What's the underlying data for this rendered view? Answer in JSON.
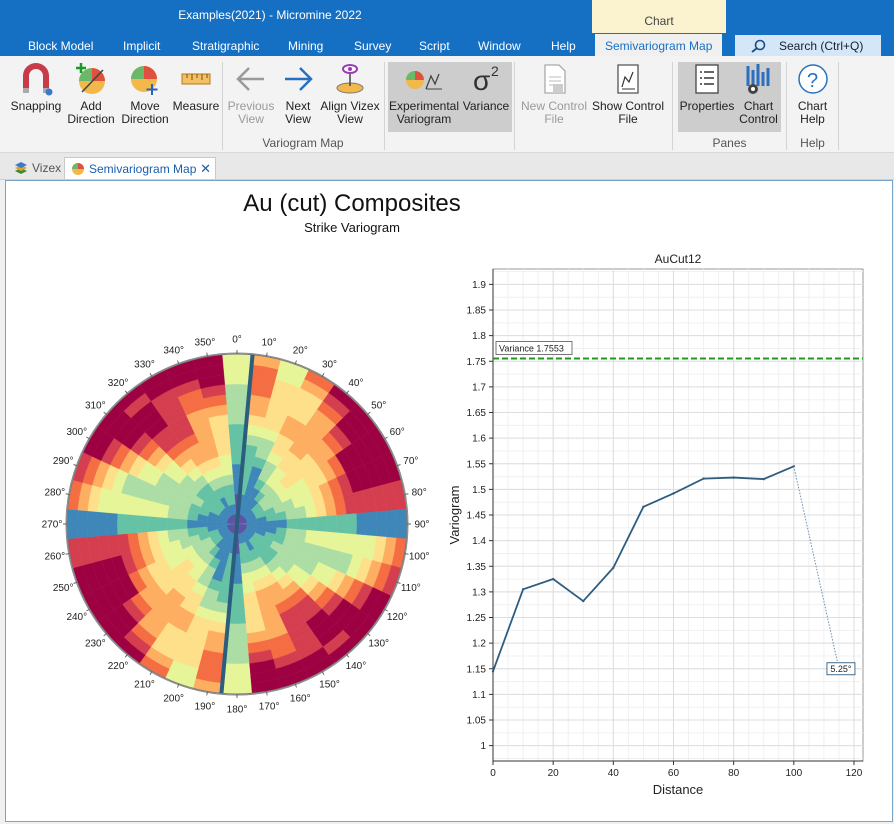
{
  "window": {
    "title": "Examples(2021)  -  Micromine 2022",
    "context_group": "Chart"
  },
  "menu_tabs": [
    "Block Model",
    "Implicit",
    "Stratigraphic",
    "Mining",
    "Survey",
    "Script",
    "Window",
    "Help",
    "Semivariogram Map"
  ],
  "search": {
    "label": "Search (Ctrl+Q)"
  },
  "ribbon": {
    "snapping": "Snapping",
    "add_direction": [
      "Add",
      "Direction"
    ],
    "move_direction": [
      "Move",
      "Direction"
    ],
    "measure": "Measure",
    "previous_view": [
      "Previous",
      "View"
    ],
    "next_view": [
      "Next",
      "View"
    ],
    "align_vizex_view": [
      "Align Vizex",
      "View"
    ],
    "group_variogram_map": "Variogram Map",
    "experimental_variogram": [
      "Experimental",
      "Variogram"
    ],
    "variance": "Variance",
    "new_control_file": [
      "New Control",
      "File"
    ],
    "show_control_file": [
      "Show Control",
      "File"
    ],
    "properties": "Properties",
    "chart_control": [
      "Chart",
      "Control"
    ],
    "group_panes": "Panes",
    "chart_help": [
      "Chart",
      "Help"
    ],
    "group_help": "Help"
  },
  "doc_tabs": {
    "vizex": "Vizex",
    "semivariogram": "Semivariogram Map"
  },
  "map": {
    "title": "Au (cut) Composites",
    "subtitle": "Strike Variogram",
    "angle_labels": [
      "0°",
      "10°",
      "20°",
      "30°",
      "40°",
      "50°",
      "60°",
      "70°",
      "80°",
      "90°",
      "100°",
      "110°",
      "120°",
      "130°",
      "140°",
      "150°",
      "160°",
      "170°",
      "180°",
      "190°",
      "200°",
      "210°",
      "220°",
      "230°",
      "240°",
      "250°",
      "260°",
      "270°",
      "280°",
      "290°",
      "300°",
      "310°",
      "320°",
      "330°",
      "340°",
      "350°"
    ],
    "selected_direction_deg": 5.25,
    "palette": [
      "#5e4fa2",
      "#3f87b9",
      "#66c2a5",
      "#abdda4",
      "#e6f598",
      "#fee08b",
      "#fdae61",
      "#f46d43",
      "#d53e4f",
      "#9e0142"
    ]
  },
  "chart_data": {
    "type": "line",
    "title": "AuCut12",
    "xlabel": "Distance",
    "ylabel": "Variogram",
    "xlim": [
      0,
      123
    ],
    "ylim": [
      0.97,
      1.93
    ],
    "x_ticks": [
      0,
      20,
      40,
      60,
      80,
      100,
      120
    ],
    "y_ticks": [
      1,
      1.05,
      1.1,
      1.15,
      1.2,
      1.25,
      1.3,
      1.35,
      1.4,
      1.45,
      1.5,
      1.55,
      1.6,
      1.65,
      1.7,
      1.75,
      1.8,
      1.85,
      1.9
    ],
    "series": [
      {
        "x": [
          0,
          10,
          20,
          30,
          40,
          50,
          60,
          70,
          80,
          90,
          100
        ],
        "y": [
          1.145,
          1.305,
          1.325,
          1.282,
          1.347,
          1.466,
          1.492,
          1.521,
          1.523,
          1.52,
          1.545
        ]
      }
    ],
    "variance": {
      "value": 1.7553,
      "label": "Variance 1.7553",
      "color": "#1f9a1f"
    },
    "extension_line": {
      "x": [
        100,
        115
      ],
      "y": [
        1.545,
        1.15
      ]
    },
    "direction_label": "5.25°",
    "line_color": "#2f5d80"
  }
}
